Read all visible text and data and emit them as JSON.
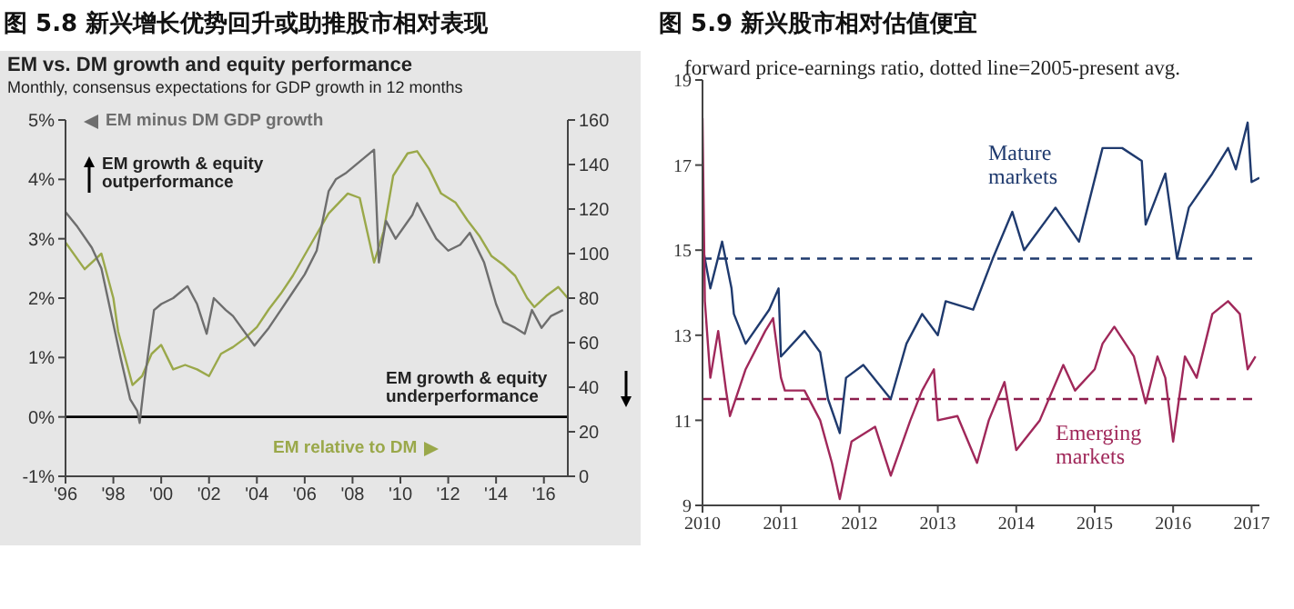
{
  "chart_data": [
    {
      "type": "line",
      "title": "图 5.8 新兴增长优势回升或助推股市相对表现",
      "subtitle": "EM vs. DM growth and equity performance",
      "annotations": [
        "Monthly, consensus expectations for GDP growth in 12 months",
        "EM growth & equity outperformance",
        "EM growth & equity underperformance"
      ],
      "xlim": [
        1996,
        2017
      ],
      "xticks": [
        {
          "value": 1996,
          "label": "'96"
        },
        {
          "value": 1998,
          "label": "'98"
        },
        {
          "value": 2000,
          "label": "'00"
        },
        {
          "value": 2002,
          "label": "'02"
        },
        {
          "value": 2004,
          "label": "'04"
        },
        {
          "value": 2006,
          "label": "'06"
        },
        {
          "value": 2008,
          "label": "'08"
        },
        {
          "value": 2010,
          "label": "'10"
        },
        {
          "value": 2012,
          "label": "'12"
        },
        {
          "value": 2014,
          "label": "'14"
        },
        {
          "value": 2016,
          "label": "'16"
        }
      ],
      "ylim": [
        -1,
        5
      ],
      "yticks": [
        {
          "value": -1,
          "label": "-1%"
        },
        {
          "value": 0,
          "label": "0%"
        },
        {
          "value": 1,
          "label": "1%"
        },
        {
          "value": 2,
          "label": "2%"
        },
        {
          "value": 3,
          "label": "3%"
        },
        {
          "value": 4,
          "label": "4%"
        },
        {
          "value": 5,
          "label": "5%"
        }
      ],
      "y2lim": [
        0,
        160
      ],
      "y2ticks": [
        0,
        20,
        40,
        60,
        80,
        100,
        120,
        140,
        160
      ],
      "ref_lines": [
        {
          "axis": "y",
          "value": 0,
          "color": "#000000",
          "line_style": "solid"
        }
      ],
      "series": [
        {
          "name": "EM relative to DM",
          "color": "#9aa84a",
          "axis": "y2",
          "x": [
            1996,
            1996.8,
            1997.5,
            1998,
            1998.2,
            1998.8,
            1999.2,
            1999.6,
            2000,
            2000.5,
            2001,
            2001.5,
            2002,
            2002.5,
            2003,
            2003.5,
            2004,
            2004.5,
            2005,
            2005.5,
            2006.3,
            2007,
            2007.8,
            2008.3,
            2008.9,
            2009.3,
            2009.7,
            2010.3,
            2010.7,
            2011.2,
            2011.7,
            2012.3,
            2012.8,
            2013.3,
            2013.8,
            2014.3,
            2014.8,
            2015.3,
            2015.6,
            2016.1,
            2016.6,
            2017
          ],
          "values": [
            105,
            93,
            100,
            80,
            65,
            41,
            45,
            55,
            59,
            48,
            50,
            48,
            45,
            55,
            58,
            62,
            67,
            75,
            82,
            90,
            105,
            118,
            127,
            125,
            96,
            110,
            135,
            145,
            146,
            138,
            127,
            123,
            115,
            108,
            99,
            95,
            90,
            80,
            76,
            81,
            85,
            80
          ]
        },
        {
          "name": "EM minus DM GDP growth",
          "color": "#6e6e6e",
          "axis": "y",
          "x": [
            1996,
            1996.5,
            1997.1,
            1997.5,
            1998.3,
            1998.7,
            1999,
            1999.1,
            1999.3,
            1999.7,
            2000,
            2000.5,
            2001.1,
            2001.5,
            2001.9,
            2002.2,
            2002.7,
            2003,
            2003.9,
            2004.5,
            2005,
            2005.5,
            2006,
            2006.5,
            2007,
            2007.3,
            2007.7,
            2008.9,
            2009.1,
            2009.4,
            2009.8,
            2010.5,
            2010.7,
            2011.5,
            2012,
            2012.5,
            2012.9,
            2013.5,
            2014,
            2014.3,
            2014.8,
            2015.2,
            2015.5,
            2015.9,
            2016.3,
            2016.8
          ],
          "values": [
            3.45,
            3.2,
            2.85,
            2.5,
            1.0,
            0.3,
            0.1,
            -0.1,
            0.6,
            1.8,
            1.9,
            2.0,
            2.2,
            1.9,
            1.4,
            2.0,
            1.8,
            1.7,
            1.2,
            1.5,
            1.8,
            2.1,
            2.4,
            2.8,
            3.8,
            4.0,
            4.1,
            4.5,
            2.6,
            3.3,
            3.0,
            3.4,
            3.6,
            3.0,
            2.8,
            2.9,
            3.1,
            2.6,
            1.9,
            1.6,
            1.5,
            1.4,
            1.8,
            1.5,
            1.7,
            1.8
          ]
        }
      ]
    },
    {
      "type": "line",
      "title": "图 5.9 新兴股市相对估值便宜",
      "subtitle": "forward price-earnings ratio, dotted line=2005-present avg.",
      "xlim": [
        2010,
        2017.1
      ],
      "xticks": [
        2010,
        2011,
        2012,
        2013,
        2014,
        2015,
        2016,
        2017
      ],
      "ylim": [
        9,
        19
      ],
      "yticks": [
        9,
        11,
        13,
        15,
        17,
        19
      ],
      "ref_lines": [
        {
          "axis": "y",
          "value": 14.8,
          "color": "#1f3a6e",
          "line_style": "dashed"
        },
        {
          "axis": "y",
          "value": 11.5,
          "color": "#8c1d4c",
          "line_style": "dashed"
        }
      ],
      "series": [
        {
          "name": "Mature markets",
          "color": "#1f3a6e",
          "x": [
            2010,
            2010.1,
            2010.25,
            2010.37,
            2010.4,
            2010.55,
            2010.85,
            2010.97,
            2011,
            2011.3,
            2011.5,
            2011.6,
            2011.75,
            2011.83,
            2012.05,
            2012.4,
            2012.6,
            2012.8,
            2013,
            2013.1,
            2013.45,
            2013.7,
            2013.95,
            2014.1,
            2014.5,
            2014.8,
            2014.95,
            2015.1,
            2015.35,
            2015.6,
            2015.65,
            2015.9,
            2016.05,
            2016.2,
            2016.5,
            2016.7,
            2016.8,
            2016.95,
            2017,
            2017.1
          ],
          "values": [
            15.1,
            14.1,
            15.2,
            14.1,
            13.5,
            12.8,
            13.6,
            14.1,
            12.5,
            13.1,
            12.6,
            11.5,
            10.7,
            12.0,
            12.3,
            11.5,
            12.8,
            13.5,
            13.0,
            13.8,
            13.6,
            14.8,
            15.9,
            15.0,
            16.0,
            15.2,
            16.3,
            17.4,
            17.4,
            17.1,
            15.6,
            16.8,
            14.8,
            16.0,
            16.8,
            17.4,
            16.9,
            18.0,
            16.6,
            16.7
          ]
        },
        {
          "name": "Emerging markets",
          "color": "#a0285a",
          "x": [
            2010,
            2010.03,
            2010.1,
            2010.2,
            2010.3,
            2010.35,
            2010.55,
            2010.8,
            2010.9,
            2011,
            2011.05,
            2011.3,
            2011.5,
            2011.65,
            2011.75,
            2011.9,
            2012.2,
            2012.4,
            2012.65,
            2012.8,
            2012.95,
            2013,
            2013.25,
            2013.5,
            2013.65,
            2013.85,
            2014,
            2014.3,
            2014.6,
            2014.75,
            2015,
            2015.1,
            2015.25,
            2015.5,
            2015.65,
            2015.8,
            2015.9,
            2016,
            2016.15,
            2016.3,
            2016.5,
            2016.7,
            2016.85,
            2016.95,
            2017.05
          ],
          "values": [
            18.1,
            13.8,
            12.0,
            13.1,
            11.7,
            11.1,
            12.2,
            13.1,
            13.4,
            12.0,
            11.7,
            11.7,
            11.0,
            10.0,
            9.15,
            10.5,
            10.85,
            9.7,
            11.0,
            11.7,
            12.2,
            11.0,
            11.1,
            10.0,
            11.0,
            11.9,
            10.3,
            11.0,
            12.3,
            11.7,
            12.2,
            12.8,
            13.2,
            12.5,
            11.4,
            12.5,
            12.0,
            10.5,
            12.5,
            12.0,
            13.5,
            13.8,
            13.5,
            12.2,
            12.5
          ]
        }
      ]
    }
  ]
}
